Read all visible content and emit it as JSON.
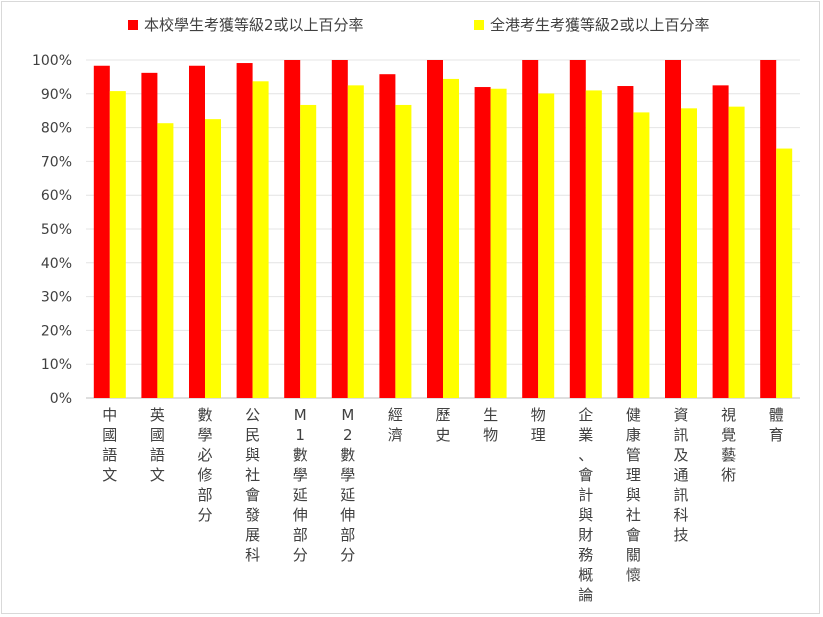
{
  "chart_data": {
    "type": "bar",
    "categories": [
      "中國語文",
      "英國語文",
      "數學必修部分",
      "公民與社會發展科",
      "M1數學延伸部分",
      "M2數學延伸部分",
      "經濟",
      "歷史",
      "生物",
      "物理",
      "企業、會計與財務概論",
      "健康管理與社會關懷",
      "資訊及通訊科技",
      "視覺藝術",
      "體育"
    ],
    "series": [
      {
        "name": "本校學生考獲等級2或以上百分率",
        "color": "#ff0000",
        "values": [
          98.3,
          96.2,
          98.3,
          99.1,
          100,
          100,
          95.8,
          100,
          92.0,
          100,
          100,
          92.3,
          100,
          92.5,
          100
        ]
      },
      {
        "name": "全港考生考獲等級2或以上百分率",
        "color": "#ffff00",
        "values": [
          90.8,
          81.3,
          82.5,
          93.7,
          86.7,
          92.5,
          86.7,
          94.4,
          91.5,
          90.1,
          91.0,
          84.5,
          85.7,
          86.2,
          73.8
        ]
      }
    ],
    "yticks": [
      "0%",
      "10%",
      "20%",
      "30%",
      "40%",
      "50%",
      "60%",
      "70%",
      "80%",
      "90%",
      "100%"
    ],
    "ylim": [
      0,
      100
    ],
    "grid": true,
    "legend_position": "top"
  }
}
